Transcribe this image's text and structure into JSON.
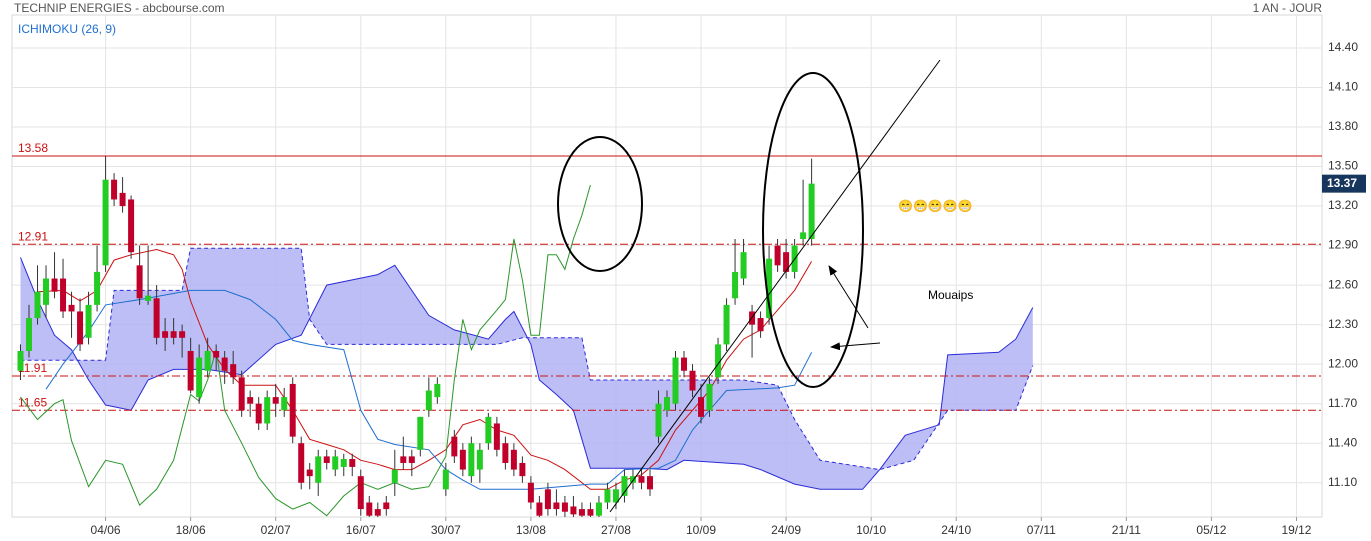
{
  "chart_data": {
    "type": "candlestick",
    "title": "TECHNIP ENERGIES - abcbourse.com",
    "period": "1 AN - JOUR",
    "indicator": "ICHIMOKU (26, 9)",
    "xlim": [
      -1,
      153
    ],
    "ylim": [
      10.84,
      14.65
    ],
    "xticks": [
      {
        "value": 10,
        "label": "04/06"
      },
      {
        "value": 20,
        "label": "18/06"
      },
      {
        "value": 30,
        "label": "02/07"
      },
      {
        "value": 40,
        "label": "16/07"
      },
      {
        "value": 50,
        "label": "30/07"
      },
      {
        "value": 60,
        "label": "13/08"
      },
      {
        "value": 70,
        "label": "27/08"
      },
      {
        "value": 80,
        "label": "10/09"
      },
      {
        "value": 90,
        "label": "24/09"
      },
      {
        "value": 100,
        "label": "10/10"
      },
      {
        "value": 110,
        "label": "24/10"
      },
      {
        "value": 120,
        "label": "07/11"
      },
      {
        "value": 130,
        "label": "21/11"
      },
      {
        "value": 140,
        "label": "05/12"
      },
      {
        "value": 150,
        "label": "19/12"
      }
    ],
    "yticks": [
      {
        "value": 11.1,
        "label": "11.10"
      },
      {
        "value": 11.4,
        "label": "11.40"
      },
      {
        "value": 11.7,
        "label": "11.70"
      },
      {
        "value": 12.0,
        "label": "12.00"
      },
      {
        "value": 12.3,
        "label": "12.30"
      },
      {
        "value": 12.6,
        "label": "12.60"
      },
      {
        "value": 12.9,
        "label": "12.90"
      },
      {
        "value": 13.2,
        "label": "13.20"
      },
      {
        "value": 13.5,
        "label": "13.50"
      },
      {
        "value": 13.8,
        "label": "13.80"
      },
      {
        "value": 14.1,
        "label": "14.10"
      },
      {
        "value": 14.4,
        "label": "14.40"
      }
    ],
    "grid": true,
    "up_color": "#22cc22",
    "down_color": "#c0002a",
    "x": [
      0,
      1,
      2,
      3,
      4,
      5,
      6,
      7,
      8,
      9,
      10,
      11,
      12,
      13,
      14,
      15,
      16,
      17,
      18,
      19,
      20,
      21,
      22,
      23,
      24,
      25,
      26,
      27,
      28,
      29,
      30,
      31,
      32,
      33,
      34,
      35,
      36,
      37,
      38,
      39,
      40,
      41,
      42,
      43,
      44,
      45,
      46,
      47,
      48,
      49,
      50,
      51,
      52,
      53,
      54,
      55,
      56,
      57,
      58,
      59,
      60,
      61,
      62,
      63,
      64,
      65,
      66,
      67,
      68,
      69,
      70,
      71,
      72,
      73,
      74,
      75,
      76,
      77,
      78,
      79,
      80,
      81,
      82,
      83,
      84,
      85,
      86,
      87,
      88,
      89,
      90,
      91,
      92,
      93
    ],
    "open": [
      11.95,
      12.1,
      12.35,
      12.45,
      12.65,
      12.65,
      12.45,
      12.4,
      12.2,
      12.45,
      12.75,
      13.4,
      13.3,
      13.25,
      12.75,
      12.48,
      12.5,
      12.25,
      12.25,
      12.25,
      12.1,
      11.75,
      11.95,
      12.1,
      12.05,
      12.0,
      11.9,
      11.75,
      11.7,
      11.55,
      11.75,
      11.65,
      11.85,
      11.4,
      11.2,
      11.1,
      11.3,
      11.2,
      11.22,
      11.28,
      11.15,
      10.95,
      10.9,
      10.95,
      11.1,
      11.3,
      11.3,
      11.35,
      11.65,
      11.75,
      11.05,
      11.45,
      11.35,
      11.15,
      11.2,
      11.4,
      11.55,
      11.4,
      11.35,
      11.25,
      11.1,
      10.95,
      11.05,
      10.95,
      10.95,
      10.92,
      10.9,
      10.9,
      10.85,
      10.95,
      10.95,
      11.0,
      11.1,
      11.15,
      11.15,
      11.45,
      11.65,
      11.7,
      12.05,
      11.95,
      11.75,
      11.65,
      11.9,
      12.15,
      12.5,
      12.65,
      12.4,
      12.35,
      12.35,
      12.9,
      12.85,
      12.7,
      12.95,
      12.95
    ],
    "high": [
      12.15,
      12.45,
      12.75,
      12.75,
      12.85,
      12.8,
      12.55,
      12.5,
      12.55,
      12.9,
      13.58,
      13.45,
      13.42,
      13.28,
      12.9,
      12.9,
      12.6,
      12.35,
      12.35,
      12.3,
      12.2,
      12.15,
      12.2,
      12.15,
      12.1,
      12.1,
      11.95,
      11.8,
      11.75,
      11.8,
      11.85,
      11.82,
      11.9,
      11.45,
      11.25,
      11.35,
      11.35,
      11.35,
      11.32,
      11.32,
      11.2,
      11.0,
      10.95,
      11.0,
      11.35,
      11.45,
      11.35,
      11.6,
      11.9,
      11.9,
      11.25,
      11.5,
      11.4,
      11.45,
      11.4,
      11.63,
      11.6,
      11.45,
      11.4,
      11.3,
      11.15,
      11.0,
      11.1,
      11.05,
      11.0,
      11.0,
      10.95,
      10.95,
      11.0,
      11.1,
      11.1,
      11.2,
      11.2,
      11.2,
      11.2,
      11.8,
      11.8,
      12.1,
      12.1,
      12.0,
      11.85,
      11.9,
      12.2,
      12.5,
      12.95,
      12.95,
      12.45,
      12.4,
      12.9,
      12.95,
      12.95,
      12.95,
      13.4,
      13.56
    ],
    "low": [
      11.88,
      12.05,
      12.3,
      12.35,
      12.5,
      12.35,
      12.2,
      12.1,
      12.15,
      12.4,
      12.7,
      13.2,
      13.15,
      12.8,
      12.45,
      12.45,
      12.15,
      12.1,
      12.15,
      12.05,
      11.78,
      11.7,
      11.9,
      11.95,
      11.85,
      11.85,
      11.6,
      11.6,
      11.5,
      11.5,
      11.6,
      11.6,
      11.4,
      11.05,
      11.05,
      11.0,
      11.2,
      11.15,
      11.15,
      11.15,
      10.85,
      10.8,
      10.8,
      10.85,
      11.0,
      11.2,
      11.15,
      11.3,
      11.6,
      11.7,
      11.0,
      11.25,
      11.15,
      11.1,
      11.1,
      11.35,
      11.3,
      11.2,
      11.15,
      11.1,
      10.9,
      10.8,
      10.85,
      10.85,
      10.82,
      10.82,
      10.8,
      10.8,
      10.8,
      10.9,
      10.9,
      10.95,
      11.05,
      11.05,
      11.0,
      11.4,
      11.6,
      11.65,
      11.9,
      11.75,
      11.55,
      11.6,
      11.85,
      12.1,
      12.45,
      12.6,
      12.05,
      12.2,
      12.3,
      12.7,
      12.65,
      12.65,
      12.9,
      12.9
    ],
    "close": [
      12.1,
      12.35,
      12.55,
      12.65,
      12.55,
      12.4,
      12.4,
      12.15,
      12.45,
      12.7,
      13.4,
      13.25,
      13.2,
      12.85,
      12.5,
      12.52,
      12.2,
      12.2,
      12.2,
      12.2,
      11.8,
      12.05,
      12.1,
      12.05,
      11.95,
      11.9,
      11.65,
      11.7,
      11.55,
      11.75,
      11.7,
      11.75,
      11.45,
      11.1,
      11.15,
      11.3,
      11.25,
      11.3,
      11.28,
      11.22,
      10.9,
      10.85,
      10.85,
      10.9,
      11.2,
      11.25,
      11.25,
      11.6,
      11.8,
      11.85,
      11.2,
      11.3,
      11.2,
      11.4,
      11.35,
      11.6,
      11.35,
      11.25,
      11.2,
      11.15,
      10.95,
      10.85,
      10.9,
      10.9,
      10.88,
      10.86,
      10.85,
      10.85,
      10.95,
      11.05,
      11.05,
      11.15,
      11.15,
      11.1,
      11.05,
      11.7,
      11.75,
      12.05,
      11.95,
      11.8,
      11.6,
      11.85,
      12.15,
      12.45,
      12.7,
      12.85,
      12.3,
      12.25,
      12.8,
      12.75,
      12.7,
      12.9,
      13.0,
      13.37
    ],
    "lines": [
      {
        "color": "#cc1111",
        "x": [
          2,
          5,
          7,
          9,
          11,
          13,
          16,
          18,
          19,
          20,
          22,
          24,
          26,
          30,
          32,
          34,
          36,
          38,
          40,
          42,
          44,
          46,
          48,
          50,
          52,
          54,
          56,
          58,
          60,
          62,
          64,
          67,
          69,
          71,
          73,
          75,
          77,
          79,
          81,
          83,
          85,
          87,
          89,
          91,
          93
        ],
        "values": [
          12.55,
          12.56,
          12.48,
          12.56,
          12.79,
          12.83,
          12.87,
          12.83,
          12.72,
          12.48,
          12.15,
          11.96,
          11.84,
          11.84,
          11.65,
          11.43,
          11.39,
          11.35,
          11.27,
          11.24,
          11.2,
          11.2,
          11.27,
          11.35,
          11.54,
          11.58,
          11.5,
          11.46,
          11.31,
          11.27,
          11.2,
          11.05,
          11.05,
          11.12,
          11.16,
          11.27,
          11.5,
          11.65,
          11.8,
          12.03,
          12.19,
          12.26,
          12.41,
          12.56,
          12.78
        ]
      },
      {
        "color": "#1f6fd0",
        "x": [
          3,
          5,
          8,
          10,
          14,
          20,
          24,
          27,
          30,
          32,
          34,
          38,
          40,
          42,
          44,
          48,
          50,
          52,
          54,
          60,
          67,
          69,
          71,
          75,
          77,
          79,
          81,
          83,
          89,
          91,
          93
        ],
        "values": [
          11.81,
          12.0,
          12.25,
          12.45,
          12.49,
          12.56,
          12.56,
          12.49,
          12.34,
          12.18,
          12.15,
          12.11,
          11.65,
          11.43,
          11.39,
          11.35,
          11.2,
          11.12,
          11.05,
          11.05,
          11.09,
          11.09,
          11.2,
          11.21,
          11.27,
          11.5,
          11.65,
          11.8,
          11.82,
          11.84,
          12.09
        ]
      },
      {
        "color": "#2a962a",
        "x": [
          0,
          2,
          4,
          5,
          6,
          8,
          10,
          12,
          14,
          16,
          18,
          20,
          21,
          22,
          23,
          24,
          26,
          28,
          30,
          32,
          34,
          36,
          38,
          40,
          42,
          44,
          46,
          48,
          50,
          51,
          52,
          53,
          54,
          56,
          57,
          58,
          59,
          60,
          61,
          62,
          63,
          64,
          65,
          66,
          67
        ],
        "values": [
          11.75,
          11.58,
          11.7,
          11.73,
          11.42,
          11.07,
          11.27,
          11.24,
          10.93,
          11.05,
          11.27,
          11.77,
          11.72,
          11.88,
          12.11,
          11.65,
          11.4,
          11.14,
          10.98,
          10.9,
          10.95,
          10.85,
          11.0,
          11.1,
          11.05,
          11.1,
          11.05,
          11.07,
          11.3,
          11.88,
          12.34,
          12.11,
          12.26,
          12.41,
          12.49,
          12.95,
          12.64,
          12.22,
          12.22,
          12.83,
          12.83,
          12.72,
          12.95,
          13.13,
          13.36
        ]
      }
    ],
    "cloud": {
      "color": "#2b2bd8",
      "fill": "#b0b3f3",
      "span_a": {
        "x": [
          0,
          2,
          4,
          6,
          8,
          10,
          13,
          15,
          18,
          22,
          26,
          30,
          33,
          36,
          42,
          44,
          46,
          48,
          51,
          55,
          57,
          58,
          60,
          61,
          63,
          65,
          67,
          73,
          76,
          78,
          85,
          87,
          91,
          94,
          99,
          101,
          104,
          108,
          109,
          115,
          117,
          119
        ],
        "values": [
          12.81,
          12.49,
          12.22,
          12.11,
          11.88,
          11.69,
          11.65,
          11.88,
          11.96,
          11.96,
          11.92,
          12.15,
          12.22,
          12.6,
          12.68,
          12.75,
          12.56,
          12.37,
          12.26,
          12.19,
          12.34,
          12.4,
          12.15,
          11.88,
          11.77,
          11.65,
          11.21,
          11.21,
          11.2,
          11.27,
          11.24,
          11.2,
          11.09,
          11.05,
          11.05,
          11.2,
          11.46,
          11.54,
          12.07,
          12.09,
          12.19,
          12.43
        ]
      },
      "span_b": {
        "x": [
          0,
          10,
          11,
          19,
          20,
          33,
          34,
          36,
          56,
          59,
          66,
          67,
          85,
          89,
          91,
          94,
          97,
          101,
          105,
          109,
          117,
          119
        ],
        "values": [
          12.03,
          12.03,
          12.56,
          12.56,
          12.88,
          12.88,
          12.34,
          12.15,
          12.15,
          12.2,
          12.2,
          11.88,
          11.88,
          11.84,
          11.58,
          11.27,
          11.24,
          11.2,
          11.27,
          11.65,
          11.65,
          11.99
        ]
      }
    },
    "hlines": [
      13.58,
      12.91,
      11.91,
      11.65
    ],
    "hline_styles": [
      "solid",
      "dashdot",
      "dashdot",
      "dashdot"
    ],
    "hline_color": "#cc1111",
    "last_price": 13.37,
    "last_price_color": "#17365d",
    "annotations": {
      "smileys": "😁😁😁😁😁",
      "note": "Mouaips"
    }
  }
}
